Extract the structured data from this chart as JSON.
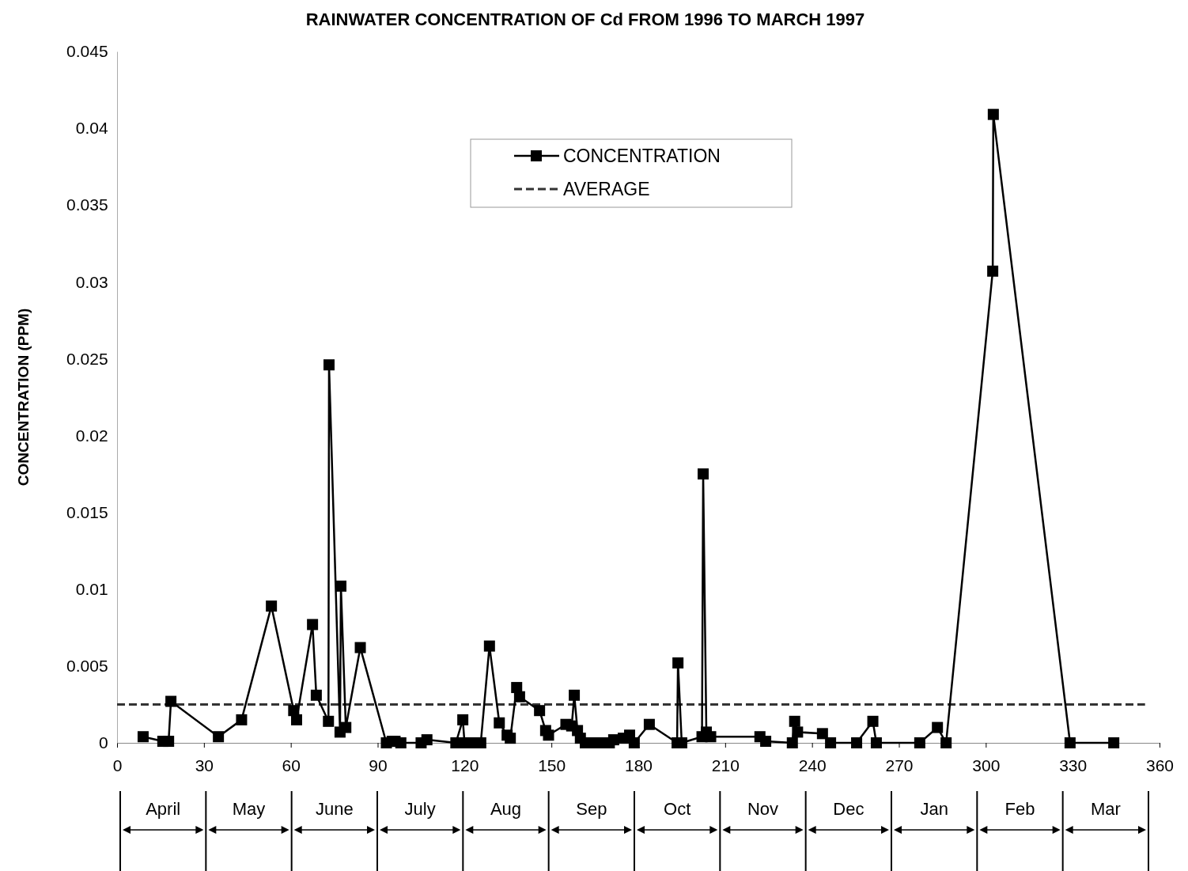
{
  "chart_data": {
    "type": "line",
    "title": "RAINWATER CONCENTRATION OF Cd FROM 1996 TO MARCH 1997",
    "ylabel": "CONCENTRATION (PPM)",
    "xlim": [
      0,
      360
    ],
    "xticks": [
      0,
      30,
      60,
      90,
      120,
      150,
      180,
      210,
      240,
      270,
      300,
      330,
      360
    ],
    "ylim": [
      0,
      0.045
    ],
    "yticks": [
      0,
      0.005,
      0.01,
      0.015,
      0.02,
      0.025,
      0.03,
      0.035,
      0.04,
      0.045
    ],
    "marker": "square",
    "legend": "top",
    "grid": false,
    "series": [
      {
        "name": "CONCENTRATION",
        "color": "#000000",
        "x": [
          9,
          15.8,
          17.8,
          18.6,
          35,
          43,
          53.3,
          61,
          62,
          67.5,
          68.8,
          73,
          73.2,
          77,
          77.3,
          79,
          84,
          93,
          95,
          96,
          98,
          105,
          107,
          117,
          119.4,
          120,
          122,
          125.6,
          128.6,
          132,
          134.7,
          135.8,
          138,
          139,
          145.9,
          148,
          149,
          155,
          157,
          157.9,
          159,
          160,
          161.7,
          164,
          167,
          170,
          171.5,
          174.8,
          177,
          178.6,
          183.8,
          193.4,
          193.7,
          195,
          202,
          202.4,
          203.5,
          205,
          222,
          224,
          233.2,
          234,
          235,
          243.6,
          246.4,
          255.4,
          261,
          262.2,
          277.2,
          283.3,
          286.3,
          302.4,
          302.6,
          329.1,
          344.2
        ],
        "values": [
          0.0004,
          0.0001,
          0.0001,
          0.0027,
          0.0004,
          0.0015,
          0.0089,
          0.0021,
          0.0015,
          0.0077,
          0.0031,
          0.0014,
          0.0246,
          0.0007,
          0.0102,
          0.001,
          0.0062,
          0,
          0.0001,
          0.0001,
          0,
          0,
          0.0002,
          0,
          0.0015,
          0,
          0,
          0,
          0.0063,
          0.0013,
          0.0005,
          0.0003,
          0.0036,
          0.003,
          0.0021,
          0.0008,
          0.0005,
          0.0012,
          0.0011,
          0.0031,
          0.0008,
          0.0003,
          0,
          0,
          0,
          0,
          0.0002,
          0.0003,
          0.0005,
          0,
          0.0012,
          0,
          0.0052,
          0,
          0.0004,
          0.0175,
          0.0007,
          0.0004,
          0.0004,
          0.0001,
          0,
          0.0014,
          0.0007,
          0.0006,
          0,
          0,
          0.0014,
          0,
          0,
          0.001,
          0,
          0.0307,
          0.0409,
          0,
          0
        ]
      }
    ],
    "ref_lines": [
      {
        "axis": "y",
        "value": 0.0025,
        "label": "AVERAGE",
        "color": "#333333",
        "line_style": "dashed"
      }
    ],
    "annotations": [
      "April",
      "May",
      "June",
      "July",
      "Aug",
      "Sep",
      "Oct",
      "Nov",
      "Dec",
      "Jan",
      "Feb",
      "Mar"
    ]
  }
}
